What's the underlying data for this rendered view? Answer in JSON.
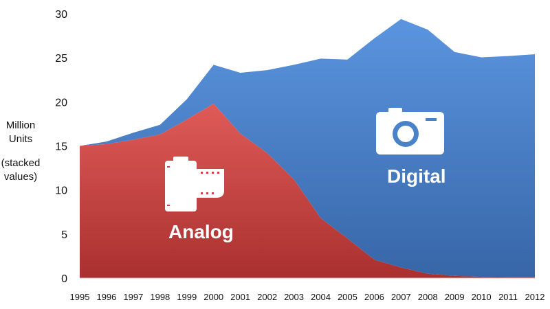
{
  "chart_data": {
    "type": "area",
    "stacked": true,
    "ylabel_lines": [
      "Million",
      "Units",
      "(stacked",
      "values)"
    ],
    "xlabel": "",
    "ylim": [
      0,
      30
    ],
    "yticks": [
      0,
      5,
      10,
      15,
      20,
      25,
      30
    ],
    "categories": [
      "1995",
      "1996",
      "1997",
      "1998",
      "1999",
      "2000",
      "2001",
      "2002",
      "2003",
      "2004",
      "2005",
      "2006",
      "2007",
      "2008",
      "2009",
      "2010",
      "2011",
      "2012"
    ],
    "grid": false,
    "series": [
      {
        "name": "Analog",
        "color": "#c0403e",
        "icon": "film-canister-icon",
        "values": [
          15.0,
          15.2,
          15.7,
          16.3,
          18.0,
          19.8,
          16.4,
          14.2,
          11.2,
          6.8,
          4.5,
          2.1,
          1.2,
          0.5,
          0.25,
          0.15,
          0.1,
          0.1
        ]
      },
      {
        "name": "Digital",
        "color": "#3f78c3",
        "icon": "camera-icon",
        "values": [
          0.0,
          0.3,
          0.8,
          1.1,
          2.3,
          4.4,
          6.9,
          9.4,
          13.0,
          18.1,
          20.3,
          25.1,
          28.2,
          27.7,
          25.4,
          24.9,
          25.1,
          25.3
        ]
      }
    ]
  }
}
